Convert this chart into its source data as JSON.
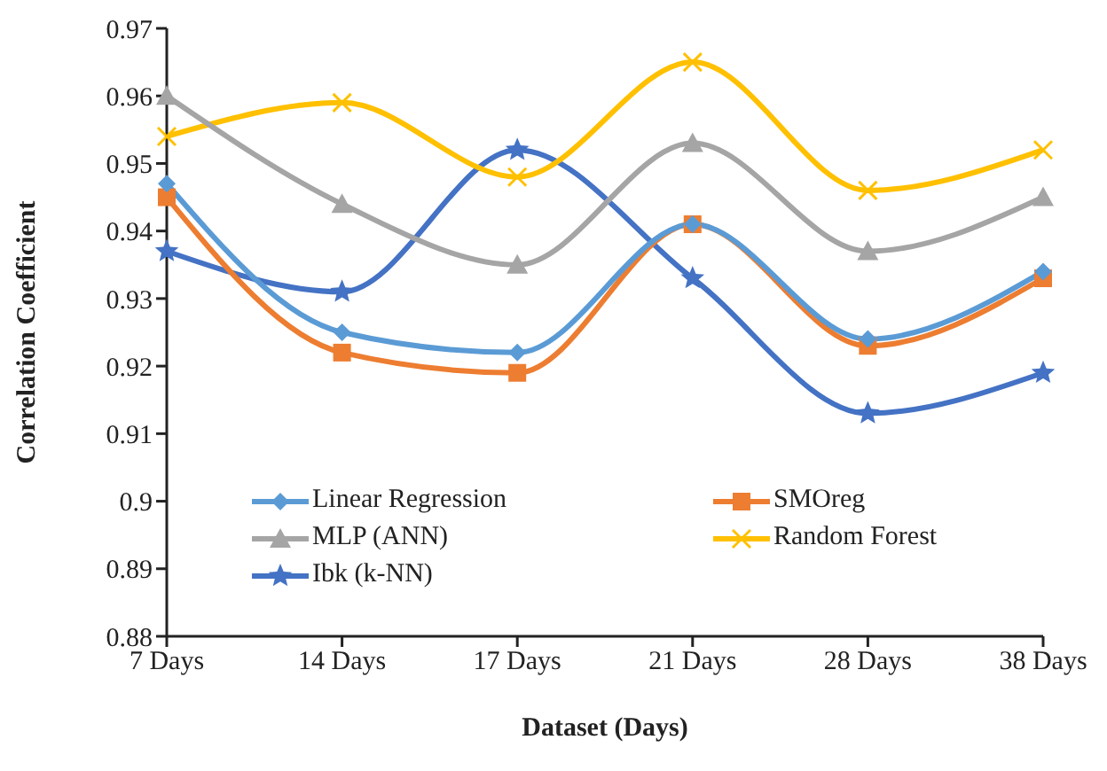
{
  "chart_data": {
    "type": "line",
    "xlabel": "Dataset (Days)",
    "ylabel": "Correlation Coefficient",
    "categories": [
      "7 Days",
      "14 Days",
      "17 Days",
      "21 Days",
      "28 Days",
      "38 Days"
    ],
    "series": [
      {
        "name": "Linear Regression",
        "color": "#5b9bd5",
        "marker": "diamond",
        "values": [
          0.947,
          0.925,
          0.922,
          0.941,
          0.924,
          0.934
        ]
      },
      {
        "name": "SMOreg",
        "color": "#ed7d31",
        "marker": "square",
        "values": [
          0.945,
          0.922,
          0.919,
          0.941,
          0.923,
          0.933
        ]
      },
      {
        "name": "MLP (ANN)",
        "color": "#a5a5a5",
        "marker": "triangle",
        "values": [
          0.96,
          0.944,
          0.935,
          0.953,
          0.937,
          0.945
        ]
      },
      {
        "name": "Random Forest",
        "color": "#ffc000",
        "marker": "cross",
        "values": [
          0.954,
          0.959,
          0.948,
          0.965,
          0.946,
          0.952
        ]
      },
      {
        "name": "Ibk (k-NN)",
        "color": "#4472c4",
        "marker": "star",
        "values": [
          0.937,
          0.931,
          0.952,
          0.933,
          0.913,
          0.919
        ]
      }
    ],
    "ylim": [
      0.88,
      0.97
    ],
    "yticks": [
      0.88,
      0.89,
      0.9,
      0.91,
      0.92,
      0.93,
      0.94,
      0.95,
      0.96,
      0.97
    ],
    "grid": false,
    "legend": "bottom",
    "line_style": "solid"
  }
}
